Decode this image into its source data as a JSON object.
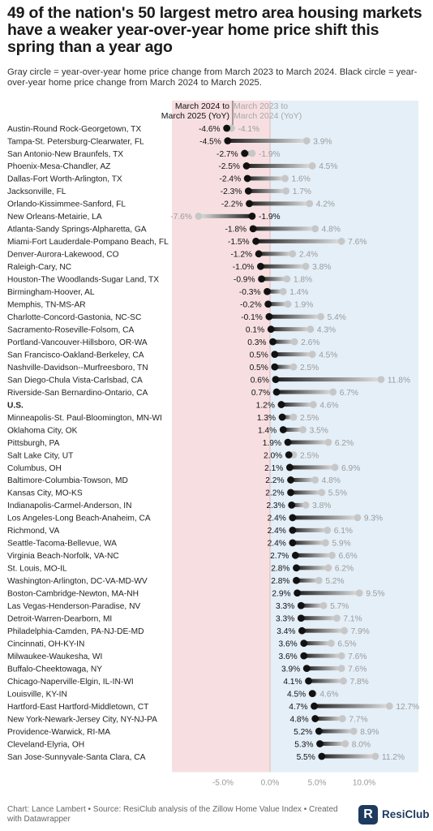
{
  "title": "49 of the nation's 50 largest metro area housing markets have a weaker year-over-year home price shift this spring than a year ago",
  "subtitle": "Gray circle = year-over-year home price change from March 2023 to March 2024. Black circle = year-over-year home price change from March 2024 to March 2025.",
  "footer": "Chart: Lance Lambert • Source: ResiClub analysis of the Zillow Home Value Index • Created with Datawrapper",
  "logo_text": "ResiClub",
  "logo_letter": "R",
  "colors": {
    "negative_bg": "#f7dfe1",
    "positive_bg": "#e4eff8",
    "current_dot": "#111111",
    "prior_dot": "#c7c7c7",
    "prior_label": "#9a9a9a",
    "current_label": "#111111"
  },
  "chart_data": {
    "type": "dot-arrow",
    "legend": {
      "current_line1": "March 2024 to",
      "current_line2": "March 2025 (YoY)",
      "prior_line1": "March 2023 to",
      "prior_line2": "March 2024 (YoY)"
    },
    "x_ticks": [
      -5,
      0,
      5,
      10
    ],
    "x_tick_labels": [
      "-5.0%",
      "0.0%",
      "5.0%",
      "10.0%"
    ],
    "xlim": [
      -10.3,
      15.8
    ],
    "rows": [
      {
        "metro": "Austin-Round Rock-Georgetown, TX",
        "current": -4.6,
        "prior": -4.1
      },
      {
        "metro": "Tampa-St. Petersburg-Clearwater, FL",
        "current": -4.5,
        "prior": 3.9
      },
      {
        "metro": "San Antonio-New Braunfels, TX",
        "current": -2.7,
        "prior": -1.9
      },
      {
        "metro": "Phoenix-Mesa-Chandler, AZ",
        "current": -2.5,
        "prior": 4.5
      },
      {
        "metro": "Dallas-Fort Worth-Arlington, TX",
        "current": -2.4,
        "prior": 1.6
      },
      {
        "metro": "Jacksonville, FL",
        "current": -2.3,
        "prior": 1.7
      },
      {
        "metro": "Orlando-Kissimmee-Sanford, FL",
        "current": -2.2,
        "prior": 4.2
      },
      {
        "metro": "New Orleans-Metairie, LA",
        "current": -1.9,
        "prior": -7.6
      },
      {
        "metro": "Atlanta-Sandy Springs-Alpharetta, GA",
        "current": -1.8,
        "prior": 4.8
      },
      {
        "metro": "Miami-Fort Lauderdale-Pompano Beach, FL",
        "current": -1.5,
        "prior": 7.6
      },
      {
        "metro": "Denver-Aurora-Lakewood, CO",
        "current": -1.2,
        "prior": 2.4
      },
      {
        "metro": "Raleigh-Cary, NC",
        "current": -1.0,
        "prior": 3.8
      },
      {
        "metro": "Houston-The Woodlands-Sugar Land, TX",
        "current": -0.9,
        "prior": 1.8
      },
      {
        "metro": "Birmingham-Hoover, AL",
        "current": -0.3,
        "prior": 1.4
      },
      {
        "metro": "Memphis, TN-MS-AR",
        "current": -0.2,
        "prior": 1.9
      },
      {
        "metro": "Charlotte-Concord-Gastonia, NC-SC",
        "current": -0.1,
        "prior": 5.4
      },
      {
        "metro": "Sacramento-Roseville-Folsom, CA",
        "current": 0.1,
        "prior": 4.3
      },
      {
        "metro": "Portland-Vancouver-Hillsboro, OR-WA",
        "current": 0.3,
        "prior": 2.6
      },
      {
        "metro": "San Francisco-Oakland-Berkeley, CA",
        "current": 0.5,
        "prior": 4.5
      },
      {
        "metro": "Nashville-Davidson--Murfreesboro, TN",
        "current": 0.5,
        "prior": 2.5
      },
      {
        "metro": "San Diego-Chula Vista-Carlsbad, CA",
        "current": 0.6,
        "prior": 11.8
      },
      {
        "metro": "Riverside-San Bernardino-Ontario, CA",
        "current": 0.7,
        "prior": 6.7
      },
      {
        "metro": "U.S.",
        "current": 1.2,
        "prior": 4.6,
        "bold": true
      },
      {
        "metro": "Minneapolis-St. Paul-Bloomington, MN-WI",
        "current": 1.3,
        "prior": 2.5
      },
      {
        "metro": "Oklahoma City, OK",
        "current": 1.4,
        "prior": 3.5
      },
      {
        "metro": "Pittsburgh, PA",
        "current": 1.9,
        "prior": 6.2
      },
      {
        "metro": "Salt Lake City, UT",
        "current": 2.0,
        "prior": 2.5
      },
      {
        "metro": "Columbus, OH",
        "current": 2.1,
        "prior": 6.9
      },
      {
        "metro": "Baltimore-Columbia-Towson, MD",
        "current": 2.2,
        "prior": 4.8
      },
      {
        "metro": "Kansas City, MO-KS",
        "current": 2.2,
        "prior": 5.5
      },
      {
        "metro": "Indianapolis-Carmel-Anderson, IN",
        "current": 2.3,
        "prior": 3.8
      },
      {
        "metro": "Los Angeles-Long Beach-Anaheim, CA",
        "current": 2.4,
        "prior": 9.3
      },
      {
        "metro": "Richmond, VA",
        "current": 2.4,
        "prior": 6.1
      },
      {
        "metro": "Seattle-Tacoma-Bellevue, WA",
        "current": 2.4,
        "prior": 5.9
      },
      {
        "metro": "Virginia Beach-Norfolk, VA-NC",
        "current": 2.7,
        "prior": 6.6
      },
      {
        "metro": "St. Louis, MO-IL",
        "current": 2.8,
        "prior": 6.2
      },
      {
        "metro": "Washington-Arlington, DC-VA-MD-WV",
        "current": 2.8,
        "prior": 5.2
      },
      {
        "metro": "Boston-Cambridge-Newton, MA-NH",
        "current": 2.9,
        "prior": 9.5
      },
      {
        "metro": "Las Vegas-Henderson-Paradise, NV",
        "current": 3.3,
        "prior": 5.7
      },
      {
        "metro": "Detroit-Warren-Dearborn, MI",
        "current": 3.3,
        "prior": 7.1
      },
      {
        "metro": "Philadelphia-Camden, PA-NJ-DE-MD",
        "current": 3.4,
        "prior": 7.9
      },
      {
        "metro": "Cincinnati, OH-KY-IN",
        "current": 3.6,
        "prior": 6.5
      },
      {
        "metro": "Milwaukee-Waukesha, WI",
        "current": 3.6,
        "prior": 7.6
      },
      {
        "metro": "Buffalo-Cheektowaga, NY",
        "current": 3.9,
        "prior": 7.6
      },
      {
        "metro": "Chicago-Naperville-Elgin, IL-IN-WI",
        "current": 4.1,
        "prior": 7.8
      },
      {
        "metro": "Louisville, KY-IN",
        "current": 4.5,
        "prior": 4.6
      },
      {
        "metro": "Hartford-East Hartford-Middletown, CT",
        "current": 4.7,
        "prior": 12.7
      },
      {
        "metro": "New York-Newark-Jersey City, NY-NJ-PA",
        "current": 4.8,
        "prior": 7.7
      },
      {
        "metro": "Providence-Warwick, RI-MA",
        "current": 5.2,
        "prior": 8.9
      },
      {
        "metro": "Cleveland-Elyria, OH",
        "current": 5.3,
        "prior": 8.0
      },
      {
        "metro": "San Jose-Sunnyvale-Santa Clara, CA",
        "current": 5.5,
        "prior": 11.2
      }
    ]
  }
}
